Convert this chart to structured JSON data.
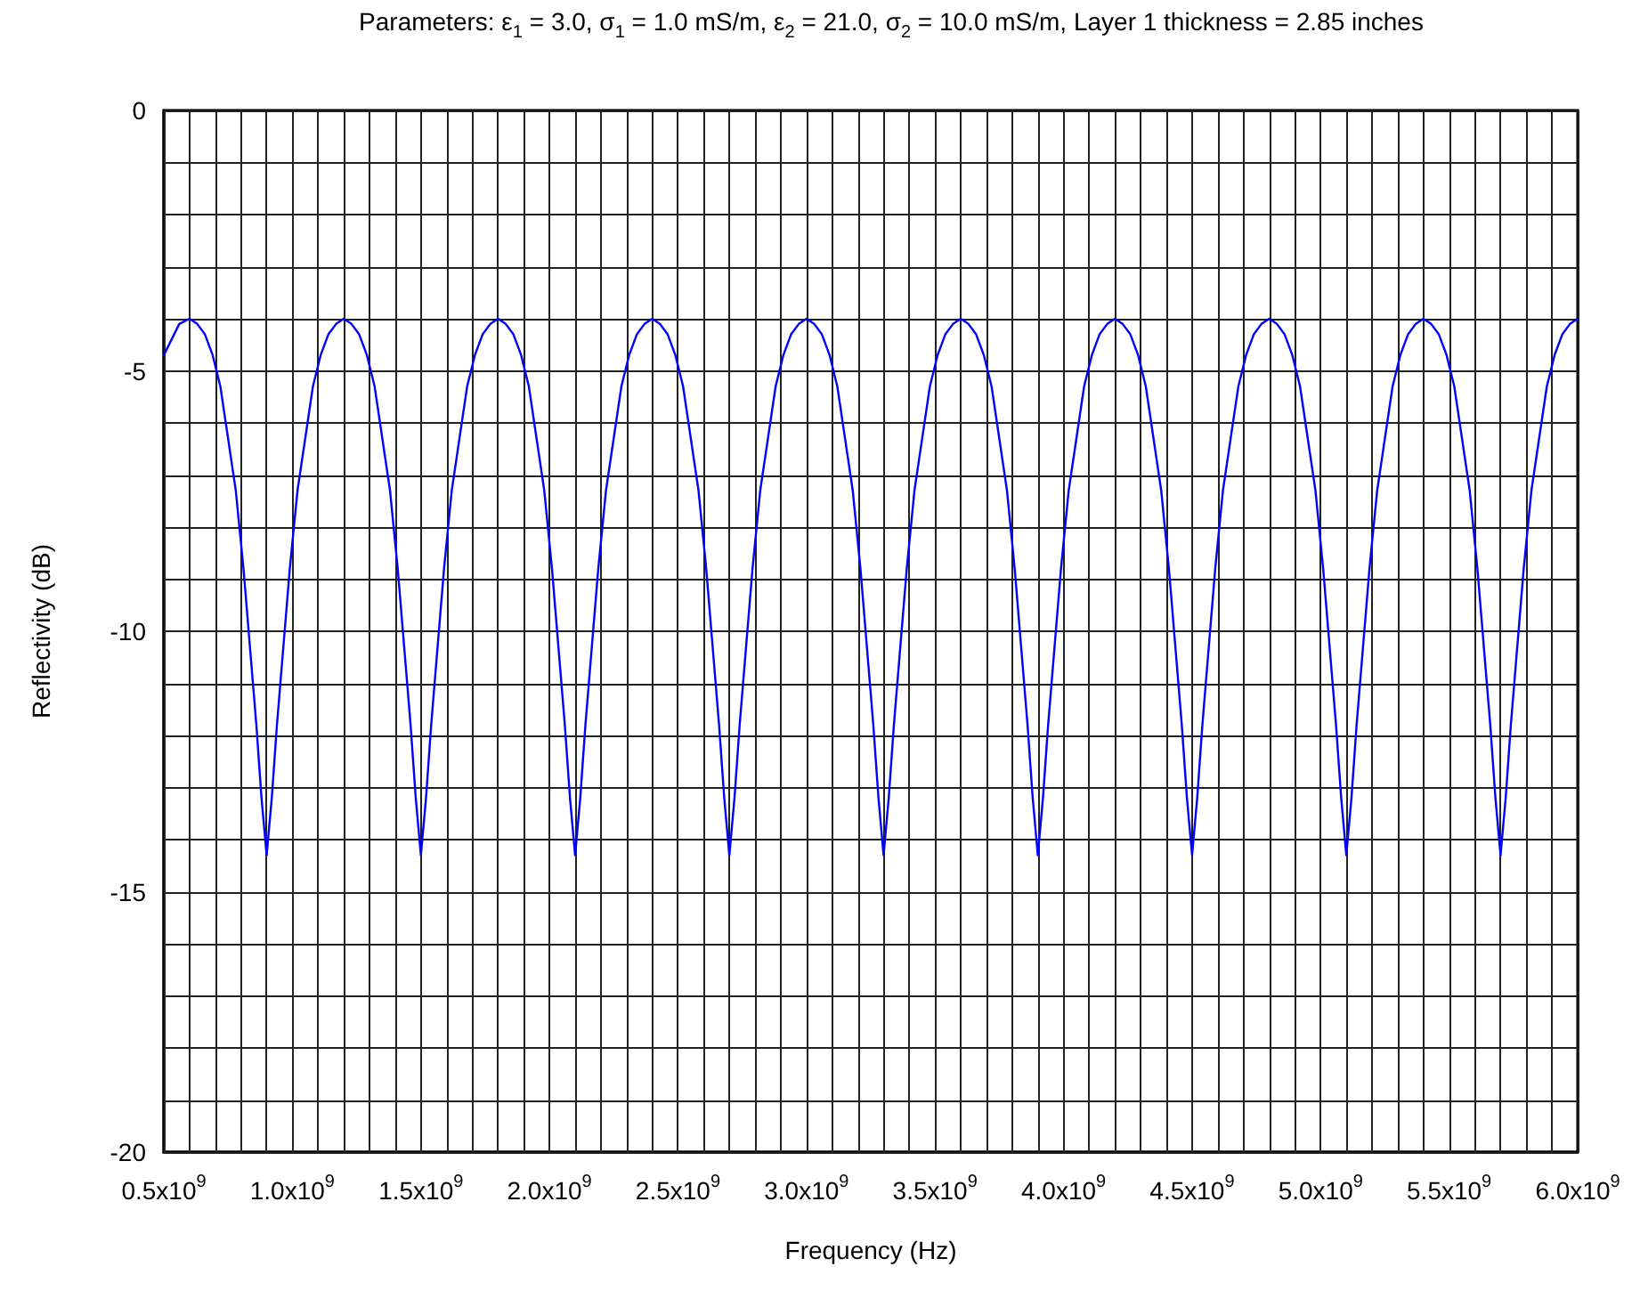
{
  "chart_data": {
    "type": "line",
    "title": "Parameters: ε$_{1}$ = 3.0, σ$_{1}$ = 1.0 mS/m, ε$_{2}$ = 21.0, σ$_{2}$ = 10.0 mS/m, Layer 1 thickness = 2.85 inches",
    "xlabel": "Frequency (Hz)",
    "ylabel": "Reflectivity (dB)",
    "xlim": [
      500000000.0,
      6000000000.0
    ],
    "ylim": [
      -20,
      0
    ],
    "xticks": [
      {
        "value": 500000000.0,
        "label": "0.5x10$^{9}$"
      },
      {
        "value": 600000000.0,
        "label": null
      },
      {
        "value": 700000000.0,
        "label": null
      },
      {
        "value": 800000000.0,
        "label": null
      },
      {
        "value": 900000000.0,
        "label": null
      },
      {
        "value": 1000000000.0,
        "label": "1.0x10$^{9}$"
      },
      {
        "value": 1100000000.0,
        "label": null
      },
      {
        "value": 1200000000.0,
        "label": null
      },
      {
        "value": 1300000000.0,
        "label": null
      },
      {
        "value": 1400000000.0,
        "label": null
      },
      {
        "value": 1500000000.0,
        "label": "1.5x10$^{9}$"
      },
      {
        "value": 1600000000.0,
        "label": null
      },
      {
        "value": 1700000000.0,
        "label": null
      },
      {
        "value": 1800000000.0,
        "label": null
      },
      {
        "value": 1900000000.0,
        "label": null
      },
      {
        "value": 2000000000.0,
        "label": "2.0x10$^{9}$"
      },
      {
        "value": 2100000000.0,
        "label": null
      },
      {
        "value": 2200000000.0,
        "label": null
      },
      {
        "value": 2300000000.0,
        "label": null
      },
      {
        "value": 2400000000.0,
        "label": null
      },
      {
        "value": 2500000000.0,
        "label": "2.5x10$^{9}$"
      },
      {
        "value": 2600000000.0,
        "label": null
      },
      {
        "value": 2700000000.0,
        "label": null
      },
      {
        "value": 2800000000.0,
        "label": null
      },
      {
        "value": 2900000000.0,
        "label": null
      },
      {
        "value": 3000000000.0,
        "label": "3.0x10$^{9}$"
      },
      {
        "value": 3100000000.0,
        "label": null
      },
      {
        "value": 3200000000.0,
        "label": null
      },
      {
        "value": 3300000000.0,
        "label": null
      },
      {
        "value": 3400000000.0,
        "label": null
      },
      {
        "value": 3500000000.0,
        "label": "3.5x10$^{9}$"
      },
      {
        "value": 3600000000.0,
        "label": null
      },
      {
        "value": 3700000000.0,
        "label": null
      },
      {
        "value": 3800000000.0,
        "label": null
      },
      {
        "value": 3900000000.0,
        "label": null
      },
      {
        "value": 4000000000.0,
        "label": "4.0x10$^{9}$"
      },
      {
        "value": 4100000000.0,
        "label": null
      },
      {
        "value": 4200000000.0,
        "label": null
      },
      {
        "value": 4300000000.0,
        "label": null
      },
      {
        "value": 4400000000.0,
        "label": null
      },
      {
        "value": 4500000000.0,
        "label": "4.5x10$^{9}$"
      },
      {
        "value": 4600000000.0,
        "label": null
      },
      {
        "value": 4700000000.0,
        "label": null
      },
      {
        "value": 4800000000.0,
        "label": null
      },
      {
        "value": 4900000000.0,
        "label": null
      },
      {
        "value": 5000000000.0,
        "label": "5.0x10$^{9}$"
      },
      {
        "value": 5100000000.0,
        "label": null
      },
      {
        "value": 5200000000.0,
        "label": null
      },
      {
        "value": 5300000000.0,
        "label": null
      },
      {
        "value": 5400000000.0,
        "label": null
      },
      {
        "value": 5500000000.0,
        "label": "5.5x10$^{9}$"
      },
      {
        "value": 5600000000.0,
        "label": null
      },
      {
        "value": 5700000000.0,
        "label": null
      },
      {
        "value": 5800000000.0,
        "label": null
      },
      {
        "value": 5900000000.0,
        "label": null
      },
      {
        "value": 6000000000.0,
        "label": "6.0x10$^{9}$"
      }
    ],
    "yticks": [
      -20,
      {
        "value": -19,
        "label": null
      },
      {
        "value": -18,
        "label": null
      },
      {
        "value": -17,
        "label": null
      },
      {
        "value": -16,
        "label": null
      },
      -15,
      {
        "value": -14,
        "label": null
      },
      {
        "value": -13,
        "label": null
      },
      {
        "value": -12,
        "label": null
      },
      {
        "value": -11,
        "label": null
      },
      -10,
      {
        "value": -9,
        "label": null
      },
      {
        "value": -8,
        "label": null
      },
      {
        "value": -7,
        "label": null
      },
      {
        "value": -6,
        "label": null
      },
      -5,
      {
        "value": -4,
        "label": null
      },
      {
        "value": -3,
        "label": null
      },
      {
        "value": -2,
        "label": null
      },
      {
        "value": -1,
        "label": null
      },
      0
    ],
    "grid": true,
    "marker": "none",
    "line_style": "solid",
    "x": [
      500000000.0,
      530000000.0,
      560000000.0,
      600000000.0,
      630000000.0,
      660000000.0,
      690000000.0,
      720000000.0,
      750000000.0,
      780000000.0,
      810000000.0,
      840000000.0,
      860000000.0,
      880000000.0,
      900000000.0,
      920000000.0,
      940000000.0,
      960000000.0,
      990000000.0,
      1020000000.0,
      1050000000.0,
      1080000000.0,
      1110000000.0,
      1140000000.0,
      1170000000.0,
      1200000000.0,
      1230000000.0,
      1260000000.0,
      1290000000.0,
      1320000000.0,
      1350000000.0,
      1380000000.0,
      1410000000.0,
      1440000000.0,
      1460000000.0,
      1480000000.0,
      1500000000.0,
      1520000000.0,
      1540000000.0,
      1560000000.0,
      1590000000.0,
      1620000000.0,
      1650000000.0,
      1680000000.0,
      1710000000.0,
      1740000000.0,
      1770000000.0,
      1800000000.0,
      1830000000.0,
      1860000000.0,
      1890000000.0,
      1920000000.0,
      1950000000.0,
      1980000000.0,
      2010000000.0,
      2040000000.0,
      2060000000.0,
      2080000000.0,
      2100000000.0,
      2120000000.0,
      2140000000.0,
      2160000000.0,
      2190000000.0,
      2220000000.0,
      2250000000.0,
      2280000000.0,
      2310000000.0,
      2340000000.0,
      2370000000.0,
      2400000000.0,
      2430000000.0,
      2460000000.0,
      2490000000.0,
      2520000000.0,
      2550000000.0,
      2580000000.0,
      2610000000.0,
      2640000000.0,
      2660000000.0,
      2680000000.0,
      2700000000.0,
      2720000000.0,
      2740000000.0,
      2760000000.0,
      2790000000.0,
      2820000000.0,
      2850000000.0,
      2880000000.0,
      2910000000.0,
      2940000000.0,
      2970000000.0,
      3000000000.0,
      3030000000.0,
      3060000000.0,
      3090000000.0,
      3120000000.0,
      3150000000.0,
      3180000000.0,
      3210000000.0,
      3240000000.0,
      3260000000.0,
      3280000000.0,
      3300000000.0,
      3320000000.0,
      3340000000.0,
      3360000000.0,
      3390000000.0,
      3420000000.0,
      3450000000.0,
      3480000000.0,
      3510000000.0,
      3540000000.0,
      3570000000.0,
      3600000000.0,
      3630000000.0,
      3660000000.0,
      3690000000.0,
      3720000000.0,
      3750000000.0,
      3780000000.0,
      3810000000.0,
      3840000000.0,
      3860000000.0,
      3880000000.0,
      3900000000.0,
      3920000000.0,
      3940000000.0,
      3960000000.0,
      3990000000.0,
      4020000000.0,
      4050000000.0,
      4080000000.0,
      4110000000.0,
      4140000000.0,
      4170000000.0,
      4200000000.0,
      4230000000.0,
      4260000000.0,
      4290000000.0,
      4320000000.0,
      4350000000.0,
      4380000000.0,
      4410000000.0,
      4440000000.0,
      4460000000.0,
      4480000000.0,
      4500000000.0,
      4520000000.0,
      4540000000.0,
      4560000000.0,
      4590000000.0,
      4620000000.0,
      4650000000.0,
      4680000000.0,
      4710000000.0,
      4740000000.0,
      4770000000.0,
      4800000000.0,
      4830000000.0,
      4860000000.0,
      4890000000.0,
      4920000000.0,
      4950000000.0,
      4980000000.0,
      5010000000.0,
      5040000000.0,
      5060000000.0,
      5080000000.0,
      5100000000.0,
      5120000000.0,
      5140000000.0,
      5160000000.0,
      5190000000.0,
      5220000000.0,
      5250000000.0,
      5280000000.0,
      5310000000.0,
      5340000000.0,
      5370000000.0,
      5400000000.0,
      5430000000.0,
      5460000000.0,
      5490000000.0,
      5520000000.0,
      5550000000.0,
      5580000000.0,
      5610000000.0,
      5640000000.0,
      5660000000.0,
      5680000000.0,
      5700000000.0,
      5720000000.0,
      5740000000.0,
      5760000000.0,
      5790000000.0,
      5820000000.0,
      5850000000.0,
      5880000000.0,
      5910000000.0,
      5940000000.0,
      5970000000.0,
      6000000000.0
    ],
    "series": [
      {
        "color": "#0000ff",
        "values": [
          -4.7,
          -4.4,
          -4.1,
          -4.0,
          -4.1,
          -4.3,
          -4.7,
          -5.3,
          -6.3,
          -7.3,
          -8.8,
          -10.6,
          -11.8,
          -13.2,
          -14.3,
          -13.2,
          -11.8,
          -10.6,
          -8.8,
          -7.3,
          -6.3,
          -5.3,
          -4.7,
          -4.3,
          -4.1,
          -4.0,
          -4.1,
          -4.3,
          -4.7,
          -5.3,
          -6.3,
          -7.3,
          -8.8,
          -10.6,
          -11.8,
          -13.2,
          -14.3,
          -13.2,
          -11.8,
          -10.6,
          -8.8,
          -7.3,
          -6.3,
          -5.3,
          -4.7,
          -4.3,
          -4.1,
          -4.0,
          -4.1,
          -4.3,
          -4.7,
          -5.3,
          -6.3,
          -7.3,
          -8.8,
          -10.6,
          -11.8,
          -13.2,
          -14.3,
          -13.2,
          -11.8,
          -10.6,
          -8.8,
          -7.3,
          -6.3,
          -5.3,
          -4.7,
          -4.3,
          -4.1,
          -4.0,
          -4.1,
          -4.3,
          -4.7,
          -5.3,
          -6.3,
          -7.3,
          -8.8,
          -10.6,
          -11.8,
          -13.2,
          -14.3,
          -13.2,
          -11.8,
          -10.6,
          -8.8,
          -7.3,
          -6.3,
          -5.3,
          -4.7,
          -4.3,
          -4.1,
          -4.0,
          -4.1,
          -4.3,
          -4.7,
          -5.3,
          -6.3,
          -7.3,
          -8.8,
          -10.6,
          -11.8,
          -13.2,
          -14.3,
          -13.2,
          -11.8,
          -10.6,
          -8.8,
          -7.3,
          -6.3,
          -5.3,
          -4.7,
          -4.3,
          -4.1,
          -4.0,
          -4.1,
          -4.3,
          -4.7,
          -5.3,
          -6.3,
          -7.3,
          -8.8,
          -10.6,
          -11.8,
          -13.2,
          -14.3,
          -13.2,
          -11.8,
          -10.6,
          -8.8,
          -7.3,
          -6.3,
          -5.3,
          -4.7,
          -4.3,
          -4.1,
          -4.0,
          -4.1,
          -4.3,
          -4.7,
          -5.3,
          -6.3,
          -7.3,
          -8.8,
          -10.6,
          -11.8,
          -13.2,
          -14.3,
          -13.2,
          -11.8,
          -10.6,
          -8.8,
          -7.3,
          -6.3,
          -5.3,
          -4.7,
          -4.3,
          -4.1,
          -4.0,
          -4.1,
          -4.3,
          -4.7,
          -5.3,
          -6.3,
          -7.3,
          -8.8,
          -10.6,
          -11.8,
          -13.2,
          -14.3,
          -13.2,
          -11.8,
          -10.6,
          -8.8,
          -7.3,
          -6.3,
          -5.3,
          -4.7,
          -4.3,
          -4.1,
          -4.0,
          -4.1,
          -4.3,
          -4.7,
          -5.3,
          -6.3,
          -7.3,
          -8.8,
          -10.6,
          -11.8,
          -13.2,
          -14.3,
          -13.2,
          -11.8,
          -10.6,
          -8.8,
          -7.3,
          -6.3,
          -5.3,
          -4.7,
          -4.3,
          -4.1,
          -4.0
        ]
      }
    ]
  }
}
